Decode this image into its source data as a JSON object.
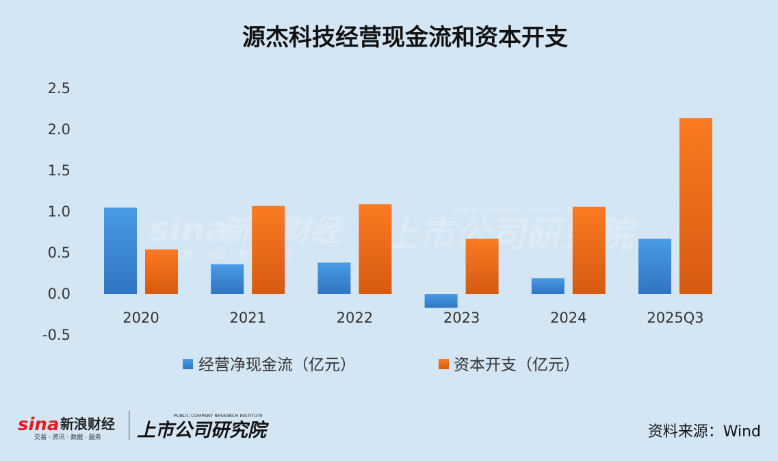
{
  "chart_data": {
    "type": "bar",
    "title": "源杰科技经营现金流和资本开支",
    "categories": [
      "2020",
      "2021",
      "2022",
      "2023",
      "2024",
      "2025Q3"
    ],
    "series": [
      {
        "name": "经营净现金流（亿元）",
        "color": "#3f8ed6",
        "values": [
          1.05,
          0.36,
          0.38,
          -0.17,
          0.19,
          0.67
        ]
      },
      {
        "name": "资本开支（亿元）",
        "color": "#ef6f1c",
        "values": [
          0.54,
          1.07,
          1.09,
          0.67,
          1.06,
          2.14
        ]
      }
    ],
    "y_ticks": [
      "2.5",
      "2.0",
      "1.5",
      "1.0",
      "0.5",
      "0.0",
      "-0.5"
    ],
    "ylim": [
      -0.5,
      2.5
    ],
    "grid": false,
    "legend_position": "bottom"
  },
  "source_text": "资料来源：Wind",
  "brand": {
    "sina_logo": "sina",
    "sina_name": "新浪财经",
    "sina_sub": "交易 · 资讯 · 数据 · 服务",
    "institute_name": "上市公司研究院",
    "institute_en": "PUBLIC COMPANY RESEARCH INSTITUTE"
  }
}
